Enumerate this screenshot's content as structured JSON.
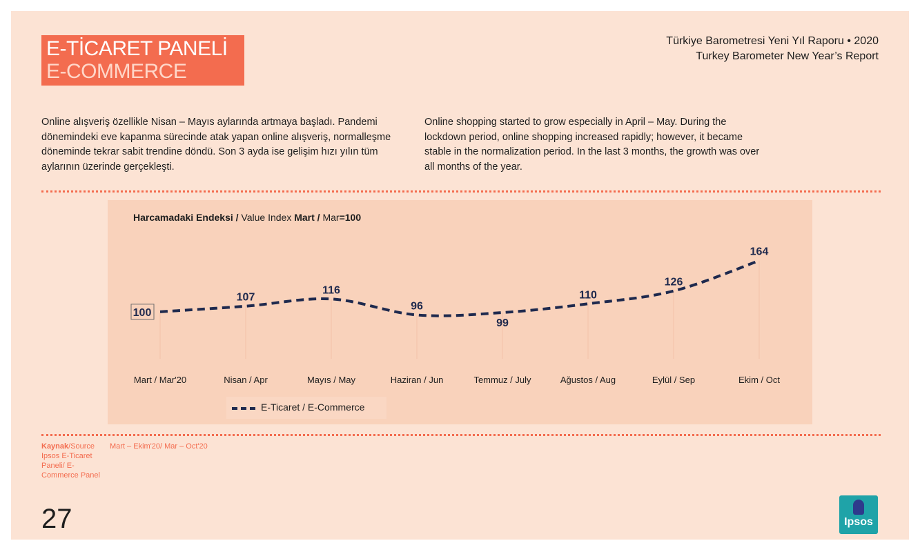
{
  "header": {
    "title_tr": "E-TİCARET PANELİ",
    "title_en": "E-COMMERCE",
    "report_tr": "Türkiye Barometresi Yeni Yıl Raporu • 2020",
    "report_en": "Turkey Barometer New Year’s Report"
  },
  "intro": {
    "tr": "Online alışveriş özellikle Nisan – Mayıs aylarında artmaya başladı. Pandemi dönemindeki eve kapanma sürecinde atak yapan online alışveriş, normalleşme döneminde tekrar sabit trendine döndü. Son 3 ayda ise gelişim hızı yılın tüm aylarının üzerinde gerçekleşti.",
    "en": "Online shopping started to grow especially in April – May. During the lockdown period, online shopping increased rapidly; however, it became stable in the normalization period. In the last 3 months, the growth was over all months of the year."
  },
  "chart_title": {
    "part1": "Harcamadaki Endeksi",
    "part2": " / ",
    "part3": "Value Index ",
    "part4": "Mart",
    "part5": " / ",
    "part6": "Mar",
    "part7": "=100"
  },
  "chart_data": {
    "type": "line",
    "categories": [
      "Mart / Mar'20",
      "Nisan / Apr",
      "Mayıs / May",
      "Haziran / Jun",
      "Temmuz / July",
      "Ağustos / Aug",
      "Eylül / Sep",
      "Ekim / Oct"
    ],
    "series": [
      {
        "name": "E-Ticaret / E-Commerce",
        "values": [
          100,
          107,
          116,
          96,
          99,
          110,
          126,
          164
        ],
        "color": "#1f2a4e",
        "style": "dashed"
      }
    ],
    "ylim": [
      80,
      175
    ],
    "label_positions": [
      "inside-box",
      "above",
      "above",
      "above",
      "below",
      "above",
      "above",
      "above"
    ]
  },
  "legend": {
    "label": "E-Ticaret / E-Commerce"
  },
  "source": {
    "label_bold": "Kaynak",
    "label_rest": "/Source",
    "text": "Ipsos E-Ticaret Paneli/ E- Commerce Panel",
    "period_a": "Mart – Ekim'20/",
    "period_b": " Mar – Oct'20"
  },
  "page_number": "27",
  "logo": {
    "text": "Ipsos"
  },
  "colors": {
    "accent": "#f36c4f",
    "panel": "#f9d2bb",
    "background": "#fce3d4",
    "line": "#1f2a4e"
  }
}
